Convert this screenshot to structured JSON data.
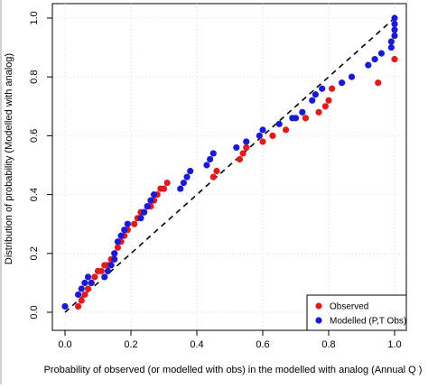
{
  "chart_data": {
    "type": "scatter",
    "xlabel": "Probability of observed (or modelled with obs) in the modelled with analog (Annual Q )",
    "ylabel": "Distribution of probability (Modelled with analog)",
    "xlim": [
      0,
      1
    ],
    "ylim": [
      0,
      1
    ],
    "x_ticks": [
      0,
      0.2,
      0.4,
      0.6,
      0.8,
      1
    ],
    "x_tick_labels": [
      "0.0",
      "0.2",
      "0.4",
      "0.6",
      "0.8",
      "1.0"
    ],
    "y_ticks": [
      0,
      0.2,
      0.4,
      0.6,
      0.8,
      1
    ],
    "y_tick_labels": [
      "0.0",
      "0.2",
      "0.4",
      "0.6",
      "0.8",
      "1.0"
    ],
    "grid": true,
    "legend_position": "bottom-right",
    "reference_line": {
      "style": "dashed",
      "color": "#000000",
      "from": [
        0,
        0
      ],
      "to": [
        1,
        1
      ]
    },
    "series": [
      {
        "name": "Observed",
        "color": "#e31a1c",
        "x": [
          0.04,
          0.05,
          0.06,
          0.07,
          0.08,
          0.09,
          0.1,
          0.11,
          0.12,
          0.13,
          0.14,
          0.15,
          0.16,
          0.17,
          0.18,
          0.19,
          0.21,
          0.22,
          0.23,
          0.24,
          0.25,
          0.26,
          0.27,
          0.28,
          0.29,
          0.3,
          0.31,
          0.45,
          0.46,
          0.53,
          0.54,
          0.55,
          0.6,
          0.63,
          0.67,
          0.73,
          0.77,
          0.79,
          0.8,
          0.81,
          0.95,
          1.0
        ],
        "y": [
          0.02,
          0.04,
          0.06,
          0.08,
          0.1,
          0.12,
          0.14,
          0.14,
          0.16,
          0.16,
          0.18,
          0.2,
          0.22,
          0.24,
          0.26,
          0.28,
          0.3,
          0.32,
          0.34,
          0.34,
          0.36,
          0.36,
          0.38,
          0.4,
          0.42,
          0.42,
          0.44,
          0.46,
          0.48,
          0.52,
          0.54,
          0.56,
          0.58,
          0.6,
          0.62,
          0.66,
          0.68,
          0.7,
          0.72,
          0.76,
          0.78,
          0.86
        ]
      },
      {
        "name": "Modelled (P,T Obs)",
        "color": "#1a1ad6",
        "x": [
          0.0,
          0.04,
          0.05,
          0.06,
          0.07,
          0.08,
          0.12,
          0.13,
          0.14,
          0.15,
          0.15,
          0.16,
          0.17,
          0.18,
          0.19,
          0.23,
          0.24,
          0.25,
          0.26,
          0.27,
          0.35,
          0.36,
          0.37,
          0.38,
          0.43,
          0.44,
          0.45,
          0.52,
          0.55,
          0.59,
          0.6,
          0.65,
          0.69,
          0.7,
          0.72,
          0.75,
          0.76,
          0.78,
          0.84,
          0.87,
          0.92,
          0.94,
          0.96,
          0.99,
          0.99,
          1.0,
          1.0,
          1.0,
          1.0
        ],
        "y": [
          0.02,
          0.06,
          0.08,
          0.1,
          0.12,
          0.1,
          0.12,
          0.14,
          0.16,
          0.18,
          0.2,
          0.24,
          0.26,
          0.28,
          0.3,
          0.32,
          0.34,
          0.36,
          0.38,
          0.4,
          0.42,
          0.44,
          0.46,
          0.48,
          0.5,
          0.52,
          0.54,
          0.56,
          0.58,
          0.6,
          0.62,
          0.64,
          0.66,
          0.66,
          0.68,
          0.72,
          0.74,
          0.76,
          0.78,
          0.8,
          0.84,
          0.86,
          0.88,
          0.9,
          0.92,
          0.94,
          0.96,
          0.98,
          1.0
        ]
      }
    ]
  }
}
